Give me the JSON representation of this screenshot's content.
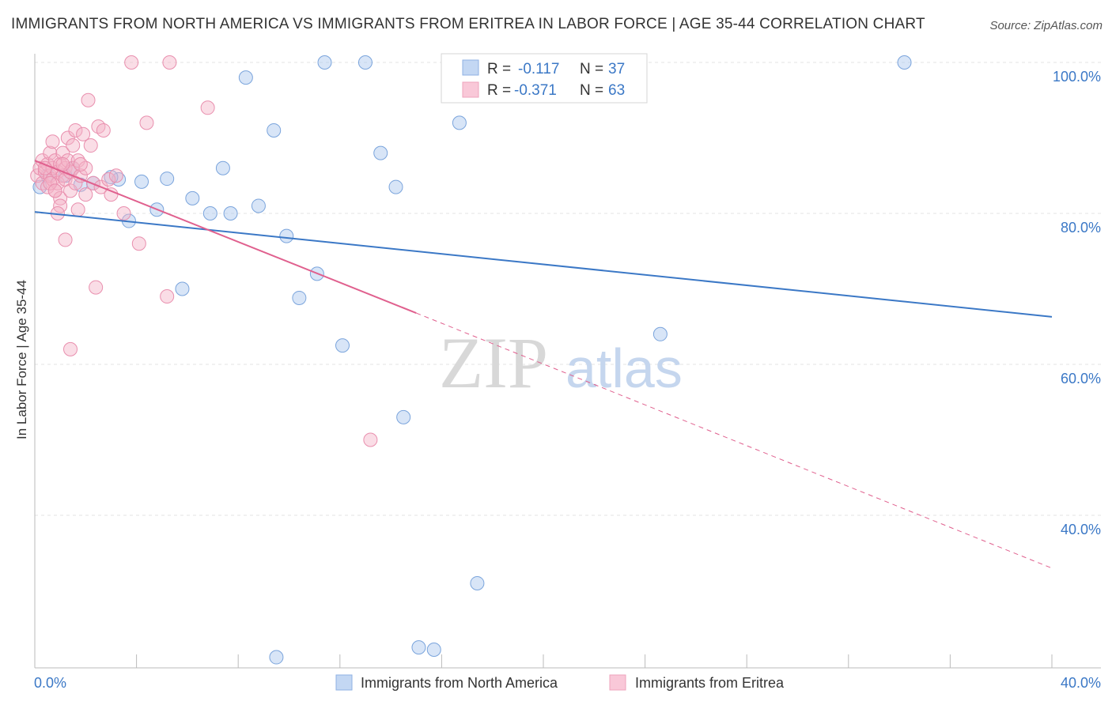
{
  "title": "IMMIGRANTS FROM NORTH AMERICA VS IMMIGRANTS FROM ERITREA IN LABOR FORCE | AGE 35-44 CORRELATION CHART",
  "source": "Source: ZipAtlas.com",
  "watermark": {
    "zip": "ZIP",
    "atlas": "atlas"
  },
  "colors": {
    "blue": "#3b78c6",
    "blue_fill": "#a9c6ee",
    "pink": "#e0608e",
    "pink_fill": "#f5b3c8",
    "grid": "#e3e3e3"
  },
  "legend": {
    "r_label": "R =",
    "n_label": "N =",
    "rows": [
      {
        "r": "-0.117",
        "n": "37"
      },
      {
        "r": "-0.371",
        "n": "63"
      }
    ]
  },
  "bottom_legend": [
    "Immigrants from North America",
    "Immigrants from Eritrea"
  ],
  "chart_data": {
    "type": "scatter",
    "title": "IMMIGRANTS FROM NORTH AMERICA VS IMMIGRANTS FROM ERITREA IN LABOR FORCE | AGE 35-44 CORRELATION CHART",
    "xlabel": "",
    "ylabel": "In Labor Force | Age 35-44",
    "xlim": [
      0,
      40
    ],
    "ylim": [
      20,
      104
    ],
    "x_tick_labels": [
      "0.0%",
      "40.0%"
    ],
    "y_ticks": [
      40,
      60,
      80,
      100
    ],
    "y_tick_labels": [
      "40.0%",
      "60.0%",
      "80.0%",
      "100.0%"
    ],
    "grid": true,
    "series": [
      {
        "name": "Immigrants from North America",
        "color": "#3b78c6",
        "points": [
          [
            0.2,
            83.5
          ],
          [
            0.5,
            85
          ],
          [
            1.2,
            85
          ],
          [
            1.8,
            83.8
          ],
          [
            2.3,
            84
          ],
          [
            3.3,
            84.5
          ],
          [
            3.7,
            79
          ],
          [
            4.2,
            84.2
          ],
          [
            4.8,
            80.5
          ],
          [
            5.2,
            84.6
          ],
          [
            5.8,
            70
          ],
          [
            6.2,
            82
          ],
          [
            6.9,
            80
          ],
          [
            7.4,
            86
          ],
          [
            7.7,
            80
          ],
          [
            8.3,
            98
          ],
          [
            8.8,
            81
          ],
          [
            9.4,
            91
          ],
          [
            9.9,
            77
          ],
          [
            10.4,
            68.8
          ],
          [
            11.1,
            72
          ],
          [
            11.4,
            100
          ],
          [
            12.1,
            62.5
          ],
          [
            13,
            100
          ],
          [
            13.6,
            88
          ],
          [
            14.2,
            83.5
          ],
          [
            14.5,
            53
          ],
          [
            15.1,
            22.5
          ],
          [
            15.7,
            22.2
          ],
          [
            16.7,
            92
          ],
          [
            17.4,
            31
          ],
          [
            21.8,
            100
          ],
          [
            24.6,
            64
          ],
          [
            34.2,
            100
          ],
          [
            9.5,
            21.2
          ],
          [
            1.5,
            86
          ],
          [
            3,
            84.8
          ]
        ]
      },
      {
        "name": "Immigrants from Eritrea",
        "color": "#e0608e",
        "points": [
          [
            0.1,
            85
          ],
          [
            0.2,
            86
          ],
          [
            0.3,
            84
          ],
          [
            0.3,
            87
          ],
          [
            0.4,
            85.5
          ],
          [
            0.5,
            86.5
          ],
          [
            0.5,
            83.5
          ],
          [
            0.6,
            88
          ],
          [
            0.6,
            85
          ],
          [
            0.7,
            84.5
          ],
          [
            0.7,
            86
          ],
          [
            0.8,
            87
          ],
          [
            0.8,
            83
          ],
          [
            0.9,
            85.5
          ],
          [
            0.9,
            84
          ],
          [
            1,
            86.5
          ],
          [
            1,
            82
          ],
          [
            1.1,
            85
          ],
          [
            1.1,
            88
          ],
          [
            1.2,
            86
          ],
          [
            1.2,
            84.5
          ],
          [
            1.3,
            87
          ],
          [
            1.3,
            90
          ],
          [
            1.4,
            85.5
          ],
          [
            1.4,
            83
          ],
          [
            1.5,
            86
          ],
          [
            1.5,
            89
          ],
          [
            1.6,
            84
          ],
          [
            1.6,
            91
          ],
          [
            1.7,
            87
          ],
          [
            1.7,
            80.5
          ],
          [
            1.8,
            85
          ],
          [
            1.9,
            90.5
          ],
          [
            2,
            86
          ],
          [
            2,
            82.5
          ],
          [
            2.1,
            95
          ],
          [
            2.2,
            89
          ],
          [
            2.3,
            84
          ],
          [
            2.4,
            70.2
          ],
          [
            2.5,
            91.5
          ],
          [
            2.6,
            83.5
          ],
          [
            2.7,
            91
          ],
          [
            2.9,
            84.5
          ],
          [
            3,
            82.5
          ],
          [
            3.2,
            85
          ],
          [
            3.5,
            80
          ],
          [
            3.8,
            100
          ],
          [
            4.1,
            76
          ],
          [
            4.4,
            92
          ],
          [
            5.2,
            69
          ],
          [
            5.3,
            100
          ],
          [
            6.8,
            94
          ],
          [
            13.2,
            50
          ],
          [
            0.4,
            86
          ],
          [
            0.6,
            84
          ],
          [
            0.8,
            83
          ],
          [
            1,
            81
          ],
          [
            1.2,
            76.5
          ],
          [
            1.4,
            62
          ],
          [
            1.8,
            86.5
          ],
          [
            0.9,
            80
          ],
          [
            0.7,
            89.5
          ],
          [
            1.1,
            86.5
          ]
        ]
      }
    ],
    "trend_lines": [
      {
        "series": "Immigrants from North America",
        "x": [
          0,
          40
        ],
        "y": [
          80.2,
          66.3
        ],
        "style": "solid"
      },
      {
        "series": "Immigrants from Eritrea",
        "x": [
          0,
          15
        ],
        "y": [
          87,
          66.8
        ],
        "style": "solid"
      },
      {
        "series": "Immigrants from Eritrea",
        "x": [
          15,
          40
        ],
        "y": [
          66.8,
          33
        ],
        "style": "dashed"
      }
    ]
  }
}
